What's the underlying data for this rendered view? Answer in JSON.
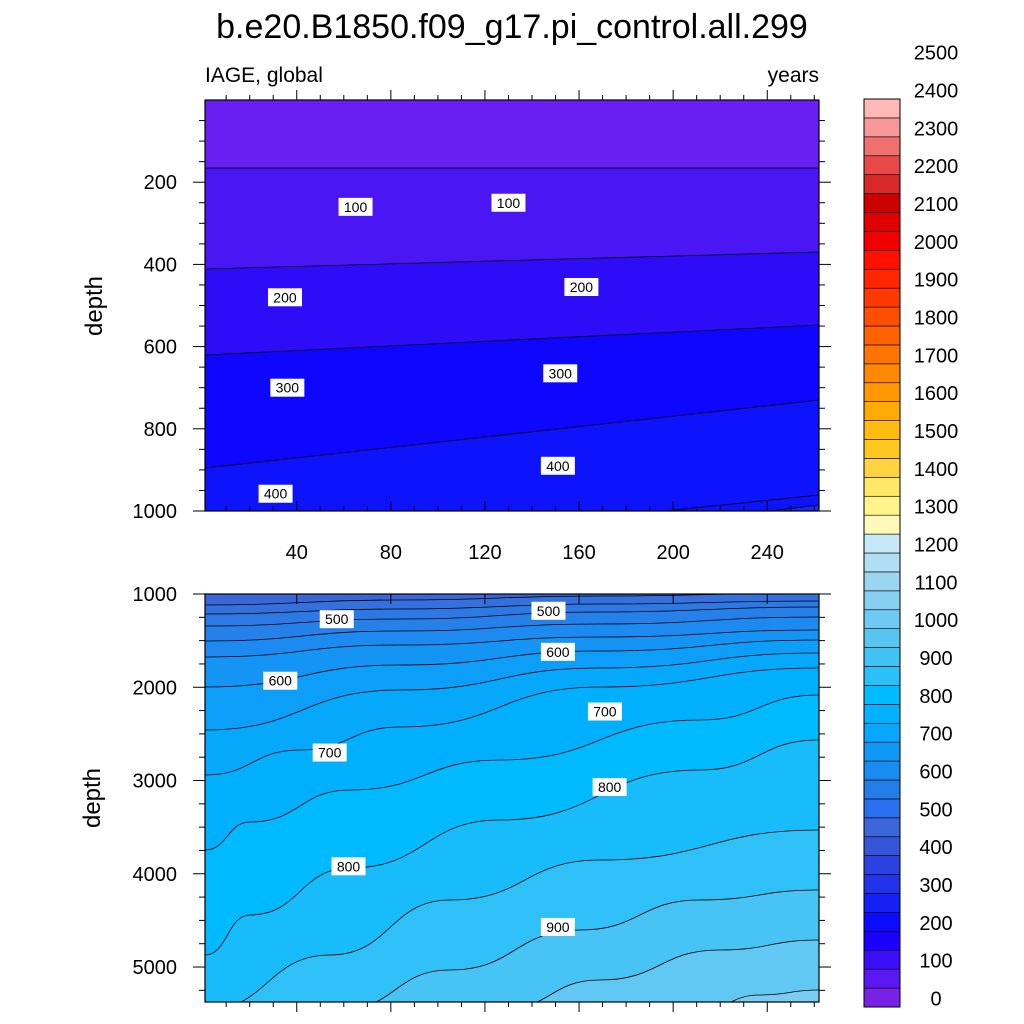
{
  "chart_data": {
    "type": "contour",
    "title": "b.e20.B1850.f09_g17.pi_control.all.299",
    "left_string": "IAGE, global",
    "right_string": "years",
    "xlabel": "",
    "xlim": [
      1,
      262
    ],
    "x_ticks": [
      40,
      80,
      120,
      160,
      200,
      240
    ],
    "colorbar": {
      "levels": [
        0,
        100,
        200,
        300,
        400,
        500,
        600,
        700,
        800,
        900,
        1000,
        1100,
        1200,
        1300,
        1400,
        1500,
        1600,
        1700,
        1800,
        1900,
        2000,
        2100,
        2200,
        2300,
        2400,
        2500
      ],
      "colors": [
        "#7a21e6",
        "#5a18f2",
        "#3a0ff8",
        "#1a00ff",
        "#0b0cff",
        "#1520f5",
        "#2032ea",
        "#2b42e0",
        "#3555d8",
        "#3d66d8",
        "#2a6ff0",
        "#237de8",
        "#1a8bf0",
        "#1098f5",
        "#09a6ff",
        "#00b2ff",
        "#00bcff",
        "#2ac0f8",
        "#40c2f5",
        "#56c6f0",
        "#6ecaf0",
        "#86cff0",
        "#9ad6f0",
        "#b0dff4",
        "#c6e8f8",
        "#fff9b8",
        "#fff48a",
        "#ffe868",
        "#ffd440",
        "#ffc820",
        "#ffbc10",
        "#ffaa00",
        "#ff9800",
        "#ff8800",
        "#ff7400",
        "#ff6200",
        "#ff4e00",
        "#ff3a00",
        "#ff2600",
        "#ff1000",
        "#f00000",
        "#e00000",
        "#cc0000",
        "#d82828",
        "#e84848",
        "#f07070",
        "#f89898",
        "#ffb8b8"
      ]
    },
    "panels": [
      {
        "name": "upper",
        "ylabel": "depth",
        "ylim": [
          0,
          1000
        ],
        "y_ticks": [
          200,
          400,
          600,
          800,
          1000
        ],
        "y_reversed": true,
        "contours": [
          {
            "level": 50,
            "x0": 168,
            "x1": 168
          },
          {
            "level": 100,
            "x0": 269,
            "x1": 252
          },
          {
            "level": 150,
            "x0": 355,
            "x1": 325
          },
          {
            "level": 200,
            "x0": 468,
            "x1": 400
          },
          {
            "level": 250,
            "x0": 580,
            "x1": 505
          },
          {
            "level": 300,
            "x0": 690,
            "x1": 590
          },
          {
            "level": 350,
            "x0": 810,
            "x1": 680
          },
          {
            "level": 400,
            "x0": 935,
            "x1": 790
          },
          {
            "level": 450,
            "x0": 1060,
            "x1": 920
          }
        ],
        "contour_labels": [
          {
            "text": "100",
            "x": 65,
            "depth": 260
          },
          {
            "text": "100",
            "x": 130,
            "depth": 250
          },
          {
            "text": "200",
            "x": 35,
            "depth": 480
          },
          {
            "text": "200",
            "x": 161,
            "depth": 455
          },
          {
            "text": "300",
            "x": 36,
            "depth": 700
          },
          {
            "text": "300",
            "x": 152,
            "depth": 665
          },
          {
            "text": "400",
            "x": 31,
            "depth": 958
          },
          {
            "text": "400",
            "x": 151,
            "depth": 890
          }
        ]
      },
      {
        "name": "lower",
        "ylabel": "depth",
        "ylim": [
          1000,
          5375
        ],
        "y_ticks": [
          1000,
          2000,
          3000,
          4000,
          5000
        ],
        "y_reversed": true,
        "contour_labels": [
          {
            "text": "500",
            "x": 57,
            "depth": 1270
          },
          {
            "text": "500",
            "x": 147,
            "depth": 1180
          },
          {
            "text": "600",
            "x": 33,
            "depth": 1930
          },
          {
            "text": "600",
            "x": 151,
            "depth": 1620
          },
          {
            "text": "700",
            "x": 54,
            "depth": 2700
          },
          {
            "text": "700",
            "x": 171,
            "depth": 2260
          },
          {
            "text": "800",
            "x": 62,
            "depth": 3920
          },
          {
            "text": "800",
            "x": 173,
            "depth": 3070
          },
          {
            "text": "900",
            "x": 151,
            "depth": 4570
          }
        ]
      }
    ]
  }
}
